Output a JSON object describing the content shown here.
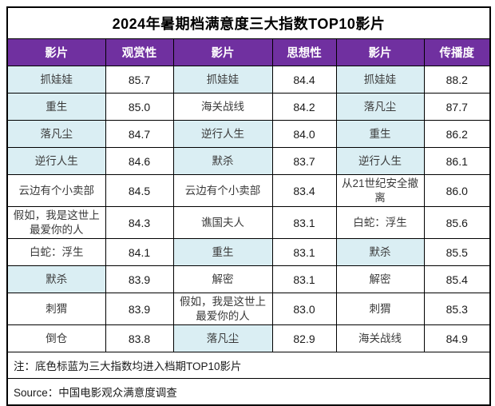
{
  "chart_data": {
    "type": "table",
    "title": "2024年暑期档满意度三大指数TOP10影片",
    "columns": [
      "影片",
      "观赏性",
      "影片",
      "思想性",
      "影片",
      "传播度"
    ],
    "series": [
      {
        "name": "观赏性",
        "films": [
          "抓娃娃",
          "重生",
          "落凡尘",
          "逆行人生",
          "云边有个小卖部",
          "假如，我是这世上最爱你的人",
          "白蛇：浮生",
          "默杀",
          "刺猬",
          "倒仓"
        ],
        "values": [
          85.7,
          85.0,
          84.7,
          84.6,
          84.5,
          84.3,
          84.1,
          83.9,
          83.9,
          83.8
        ]
      },
      {
        "name": "思想性",
        "films": [
          "抓娃娃",
          "海关战线",
          "逆行人生",
          "默杀",
          "云边有个小卖部",
          "谯国夫人",
          "重生",
          "解密",
          "假如，我是这世上最爱你的人",
          "落凡尘"
        ],
        "values": [
          84.4,
          84.2,
          84.0,
          83.7,
          83.4,
          83.1,
          83.1,
          83.1,
          83.0,
          82.9
        ]
      },
      {
        "name": "传播度",
        "films": [
          "抓娃娃",
          "落凡尘",
          "重生",
          "逆行人生",
          "从21世纪安全撤离",
          "白蛇：浮生",
          "默杀",
          "解密",
          "刺猬",
          "海关战线"
        ],
        "values": [
          88.2,
          87.7,
          86.2,
          86.1,
          86.0,
          85.6,
          85.5,
          85.4,
          85.3,
          84.9
        ]
      }
    ],
    "highlighted_films": [
      "抓娃娃",
      "重生",
      "落凡尘",
      "逆行人生",
      "默杀"
    ],
    "note": "注：底色标蓝为三大指数均进入档期TOP10影片",
    "source": "Source：中国电影观众满意度调查"
  },
  "colors": {
    "header_bg": "#7030A0",
    "header_text": "#ffffff",
    "highlight_bg": "#DAEEF3",
    "border": "#000000",
    "title_text": "#000000"
  }
}
